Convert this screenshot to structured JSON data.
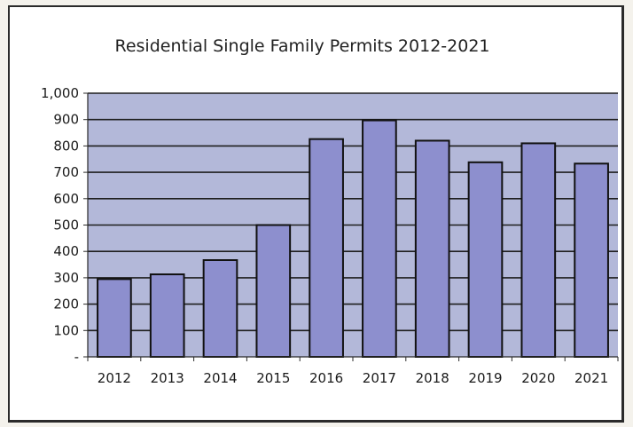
{
  "chart_data": {
    "type": "bar",
    "title": "Residential Single Family Permits 2012-2021",
    "xlabel": "",
    "ylabel": "",
    "categories": [
      "2012",
      "2013",
      "2014",
      "2015",
      "2016",
      "2017",
      "2018",
      "2019",
      "2020",
      "2021"
    ],
    "values": [
      295,
      313,
      367,
      500,
      826,
      897,
      820,
      738,
      810,
      733
    ],
    "ylim": [
      0,
      1000
    ],
    "yticks": [
      0,
      100,
      200,
      300,
      400,
      500,
      600,
      700,
      800,
      900,
      1000
    ],
    "ytick_labels": [
      "-",
      "100",
      "200",
      "300",
      "400",
      "500",
      "600",
      "700",
      "800",
      "900",
      "1,000"
    ],
    "grid": true,
    "legend": "none"
  },
  "colors": {
    "plot_background": "#b3b8d9",
    "bar_fill": "#8d8fce",
    "bar_edge": "#111111",
    "gridline": "#1e1e1e",
    "frame_background": "#ffffff"
  }
}
